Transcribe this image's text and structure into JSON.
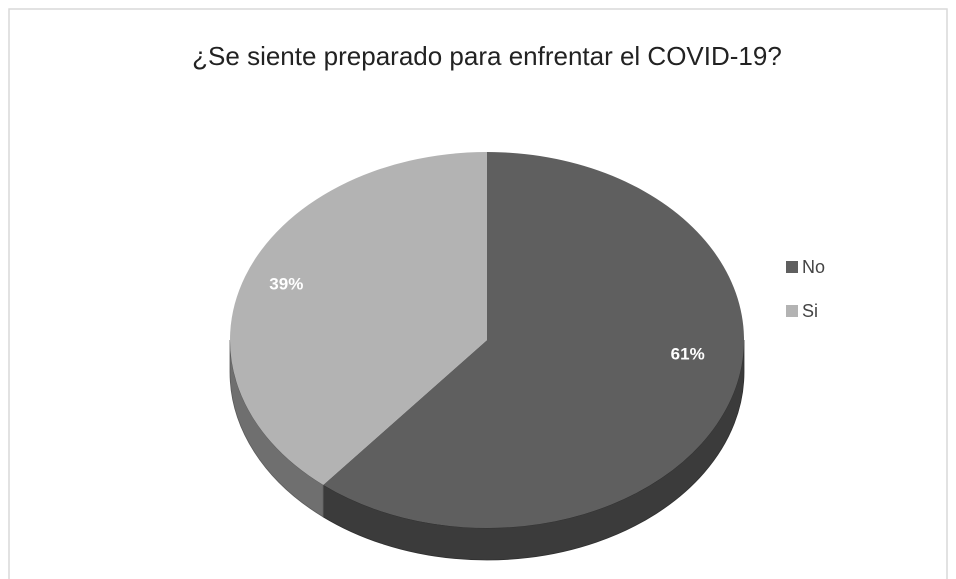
{
  "chart_data": {
    "type": "pie",
    "title": "¿Se siente preparado para enfrentar el COVID-19?",
    "categories": [
      "No",
      "Si"
    ],
    "values": [
      61,
      39
    ],
    "value_labels": [
      "61%",
      "39%"
    ],
    "colors": [
      "#5f5f5f",
      "#b3b3b3"
    ],
    "legend": "right"
  }
}
